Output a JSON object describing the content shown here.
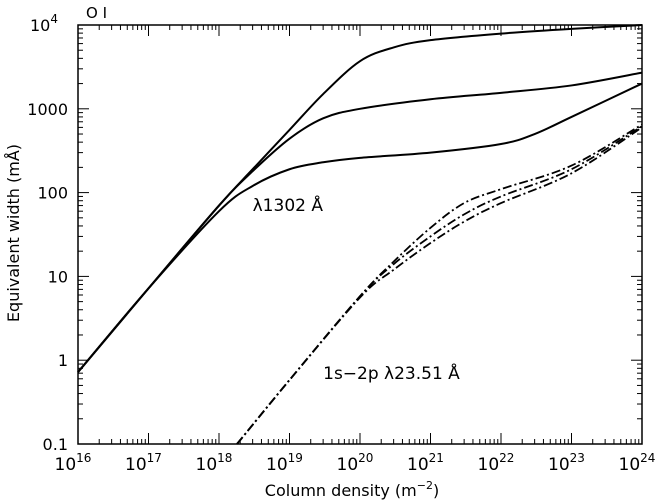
{
  "chart_data": {
    "type": "line",
    "title": "O I",
    "xlabel": "Column density (m",
    "xlabel_sup": "−2",
    "xlabel_close": ")",
    "ylabel": "Equivalent width (mÅ)",
    "x_scale": "log",
    "y_scale": "log",
    "xlim": [
      1e+16,
      1e+24
    ],
    "ylim": [
      0.1,
      10000
    ],
    "grid": false,
    "x_ticks": [
      {
        "value": 1e+16,
        "base": "10",
        "exp": "16"
      },
      {
        "value": 1e+17,
        "base": "10",
        "exp": "17"
      },
      {
        "value": 1e+18,
        "base": "10",
        "exp": "18"
      },
      {
        "value": 1e+19,
        "base": "10",
        "exp": "19"
      },
      {
        "value": 1e+20,
        "base": "10",
        "exp": "20"
      },
      {
        "value": 1e+21,
        "base": "10",
        "exp": "21"
      },
      {
        "value": 1e+22,
        "base": "10",
        "exp": "22"
      },
      {
        "value": 1e+23,
        "base": "10",
        "exp": "23"
      },
      {
        "value": 1e+24,
        "base": "10",
        "exp": "24"
      }
    ],
    "y_ticks": [
      {
        "value": 0.1,
        "label": "0.1"
      },
      {
        "value": 1,
        "label": "1"
      },
      {
        "value": 10,
        "label": "10"
      },
      {
        "value": 100,
        "label": "100"
      },
      {
        "value": 1000,
        "label": "1000"
      },
      {
        "value": 10000,
        "label": "10",
        "exp": "4"
      }
    ],
    "annotations": [
      {
        "text": "λ1302 Å",
        "x": 3e+18,
        "y": 60
      },
      {
        "text": "1s−2p λ23.51 Å",
        "x": 3e+19,
        "y": 0.6
      }
    ],
    "series": [
      {
        "style": "solid",
        "points": [
          [
            1e+16,
            0.72
          ],
          [
            1e+17,
            7.2
          ],
          [
            1e+18,
            70
          ],
          [
            3e+18,
            190
          ],
          [
            1e+19,
            560
          ],
          [
            3e+19,
            1500
          ],
          [
            1e+20,
            3700
          ],
          [
            3e+20,
            5400
          ],
          [
            1e+21,
            6600
          ],
          [
            1e+22,
            7900
          ],
          [
            1e+23,
            9000
          ],
          [
            1e+24,
            10000
          ]
        ]
      },
      {
        "style": "solid",
        "points": [
          [
            1e+16,
            0.72
          ],
          [
            1e+17,
            7.2
          ],
          [
            1e+18,
            70
          ],
          [
            3e+18,
            180
          ],
          [
            1e+19,
            440
          ],
          [
            3e+19,
            770
          ],
          [
            1e+20,
            1000
          ],
          [
            1e+21,
            1300
          ],
          [
            1e+22,
            1550
          ],
          [
            1e+23,
            1900
          ],
          [
            1e+24,
            2700
          ]
        ]
      },
      {
        "style": "solid",
        "points": [
          [
            1e+16,
            0.72
          ],
          [
            1e+17,
            7.2
          ],
          [
            1e+18,
            60
          ],
          [
            3e+18,
            120
          ],
          [
            1e+19,
            190
          ],
          [
            3e+19,
            230
          ],
          [
            1e+20,
            260
          ],
          [
            1e+21,
            300
          ],
          [
            1e+22,
            380
          ],
          [
            3e+22,
            500
          ],
          [
            1e+23,
            800
          ],
          [
            1e+24,
            2000
          ]
        ]
      },
      {
        "style": "dashdot",
        "points": [
          [
            1.8e+18,
            0.1
          ],
          [
            1e+19,
            0.58
          ],
          [
            1e+20,
            5.8
          ],
          [
            3e+20,
            15
          ],
          [
            1e+21,
            38
          ],
          [
            3e+21,
            75
          ],
          [
            1e+22,
            110
          ],
          [
            1e+23,
            210
          ],
          [
            1e+24,
            650
          ]
        ]
      },
      {
        "style": "dashdot",
        "points": [
          [
            1.8e+18,
            0.1
          ],
          [
            1e+19,
            0.58
          ],
          [
            1e+20,
            5.8
          ],
          [
            3e+20,
            14
          ],
          [
            1e+21,
            30
          ],
          [
            3e+21,
            55
          ],
          [
            1e+22,
            90
          ],
          [
            1e+23,
            190
          ],
          [
            1e+24,
            620
          ]
        ]
      },
      {
        "style": "dashdot",
        "points": [
          [
            1.8e+18,
            0.1
          ],
          [
            1e+19,
            0.58
          ],
          [
            1e+20,
            5.6
          ],
          [
            3e+20,
            12
          ],
          [
            1e+21,
            25
          ],
          [
            3e+21,
            45
          ],
          [
            1e+22,
            75
          ],
          [
            1e+23,
            170
          ],
          [
            1e+24,
            600
          ]
        ]
      }
    ]
  }
}
